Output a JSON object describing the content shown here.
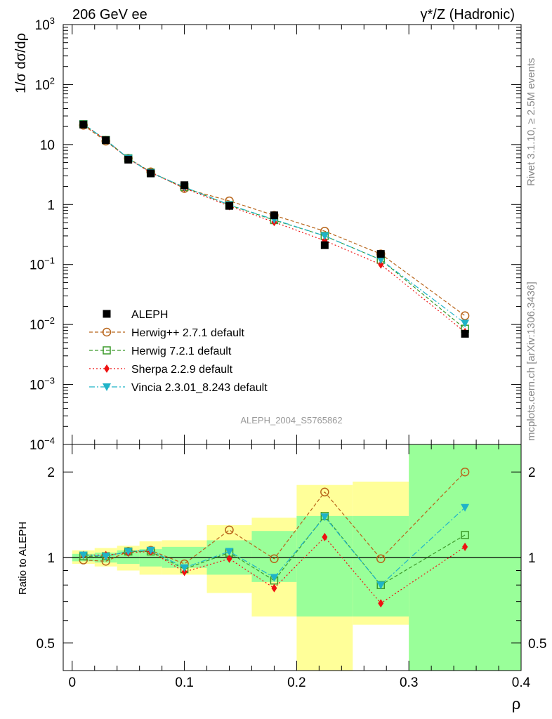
{
  "header": {
    "left": "206 GeV ee",
    "right": "γ*/Z (Hadronic)"
  },
  "side_labels": {
    "rivet": "Rivet 3.1.10, ≥ 2.5M events",
    "mcplots": "mcplots.cern.ch [arXiv:1306.3436]"
  },
  "analysis_label": "ALEPH_2004_S5765862",
  "legend": [
    {
      "key": "aleph",
      "label": "ALEPH"
    },
    {
      "key": "herwigpp",
      "label": "Herwig++ 2.7.1 default"
    },
    {
      "key": "herwig7",
      "label": "Herwig 7.2.1 default"
    },
    {
      "key": "sherpa",
      "label": "Sherpa 2.2.9 default"
    },
    {
      "key": "vincia",
      "label": "Vincia 2.3.01_8.243 default"
    }
  ],
  "colors": {
    "aleph": "#000000",
    "herwigpp": "#b8651a",
    "herwig7": "#3c9a2a",
    "sherpa": "#ee1111",
    "vincia": "#1fb3c8",
    "band_inner": "#99ff99",
    "band_outer": "#ffff99"
  },
  "chart_data": [
    {
      "type": "line",
      "name": "main",
      "ylabel": "1/σ  dσ/dρ",
      "y_scale": "log",
      "ylim": [
        0.0001,
        1000
      ],
      "xlim": [
        -0.008,
        0.4
      ],
      "y_ticks": [
        {
          "v": 0.0001,
          "b": "10",
          "e": "−4"
        },
        {
          "v": 0.001,
          "b": "10",
          "e": "−3"
        },
        {
          "v": 0.01,
          "b": "10",
          "e": "−2"
        },
        {
          "v": 0.1,
          "b": "10",
          "e": "−1"
        },
        {
          "v": 1,
          "b": "1",
          "e": ""
        },
        {
          "v": 10,
          "b": "10",
          "e": ""
        },
        {
          "v": 100,
          "b": "10",
          "e": "2"
        },
        {
          "v": 1000,
          "b": "10",
          "e": "3"
        }
      ],
      "x": [
        0.01,
        0.03,
        0.05,
        0.07,
        0.1,
        0.14,
        0.18,
        0.225,
        0.275,
        0.35
      ],
      "series": [
        {
          "key": "aleph",
          "values": [
            21.5,
            11.8,
            5.6,
            3.3,
            2.1,
            0.95,
            0.66,
            0.21,
            0.15,
            0.007
          ]
        },
        {
          "key": "herwigpp",
          "values": [
            21.0,
            11.4,
            5.9,
            3.5,
            1.85,
            1.15,
            0.66,
            0.36,
            0.15,
            0.014
          ]
        },
        {
          "key": "herwig7",
          "values": [
            21.9,
            11.9,
            5.9,
            3.4,
            1.95,
            0.98,
            0.55,
            0.3,
            0.12,
            0.0085
          ]
        },
        {
          "key": "sherpa",
          "values": [
            21.9,
            11.9,
            5.8,
            3.4,
            1.88,
            0.94,
            0.51,
            0.25,
            0.1,
            0.0075
          ]
        },
        {
          "key": "vincia",
          "values": [
            21.9,
            11.9,
            5.9,
            3.4,
            1.95,
            0.99,
            0.56,
            0.3,
            0.12,
            0.0105
          ]
        }
      ]
    },
    {
      "type": "line",
      "name": "ratio",
      "ylabel": "Ratio to ALEPH",
      "xlabel": "ρ",
      "y_scale": "log",
      "ylim": [
        0.4,
        2.5
      ],
      "xlim": [
        -0.008,
        0.4
      ],
      "y_ticks": [
        0.5,
        1,
        2
      ],
      "x_ticks": [
        0,
        0.1,
        0.2,
        0.3,
        0.4
      ],
      "x_tick_labels": [
        "0",
        "0.1",
        "0.2",
        "0.3",
        "0.4"
      ],
      "x": [
        0.01,
        0.03,
        0.05,
        0.07,
        0.1,
        0.14,
        0.18,
        0.225,
        0.275,
        0.35
      ],
      "bands": [
        {
          "x0": 0.0,
          "x1": 0.02,
          "inner": [
            0.97,
            1.03
          ],
          "outer": [
            0.95,
            1.06
          ]
        },
        {
          "x0": 0.02,
          "x1": 0.04,
          "inner": [
            0.96,
            1.04
          ],
          "outer": [
            0.93,
            1.08
          ]
        },
        {
          "x0": 0.04,
          "x1": 0.06,
          "inner": [
            0.95,
            1.06
          ],
          "outer": [
            0.9,
            1.1
          ]
        },
        {
          "x0": 0.06,
          "x1": 0.08,
          "inner": [
            0.93,
            1.07
          ],
          "outer": [
            0.87,
            1.14
          ]
        },
        {
          "x0": 0.08,
          "x1": 0.12,
          "inner": [
            0.92,
            1.09
          ],
          "outer": [
            0.87,
            1.15
          ]
        },
        {
          "x0": 0.12,
          "x1": 0.16,
          "inner": [
            0.87,
            1.15
          ],
          "outer": [
            0.75,
            1.3
          ]
        },
        {
          "x0": 0.16,
          "x1": 0.2,
          "inner": [
            0.82,
            1.24
          ],
          "outer": [
            0.62,
            1.38
          ]
        },
        {
          "x0": 0.2,
          "x1": 0.25,
          "inner": [
            0.62,
            1.4
          ],
          "outer": [
            0.4,
            1.8
          ]
        },
        {
          "x0": 0.25,
          "x1": 0.3,
          "inner": [
            0.62,
            1.4
          ],
          "outer": [
            0.58,
            1.85
          ]
        },
        {
          "x0": 0.3,
          "x1": 0.4,
          "inner": [
            0.4,
            2.5
          ],
          "outer": [
            0.4,
            2.5
          ]
        }
      ],
      "series": [
        {
          "key": "aleph",
          "values": [
            1,
            1,
            1,
            1,
            1,
            1,
            1,
            1,
            1,
            1
          ]
        },
        {
          "key": "herwigpp",
          "values": [
            0.98,
            0.97,
            1.05,
            1.06,
            0.95,
            1.25,
            0.99,
            1.7,
            0.99,
            2.0
          ]
        },
        {
          "key": "herwig7",
          "values": [
            1.01,
            1.01,
            1.05,
            1.05,
            0.91,
            1.04,
            0.83,
            1.4,
            0.8,
            1.2
          ]
        },
        {
          "key": "sherpa",
          "values": [
            1.02,
            1.02,
            1.04,
            1.05,
            0.89,
            0.99,
            0.78,
            1.18,
            0.69,
            1.09
          ]
        },
        {
          "key": "vincia",
          "values": [
            1.02,
            1.01,
            1.05,
            1.06,
            0.92,
            1.05,
            0.85,
            1.39,
            0.8,
            1.5
          ]
        }
      ]
    }
  ]
}
